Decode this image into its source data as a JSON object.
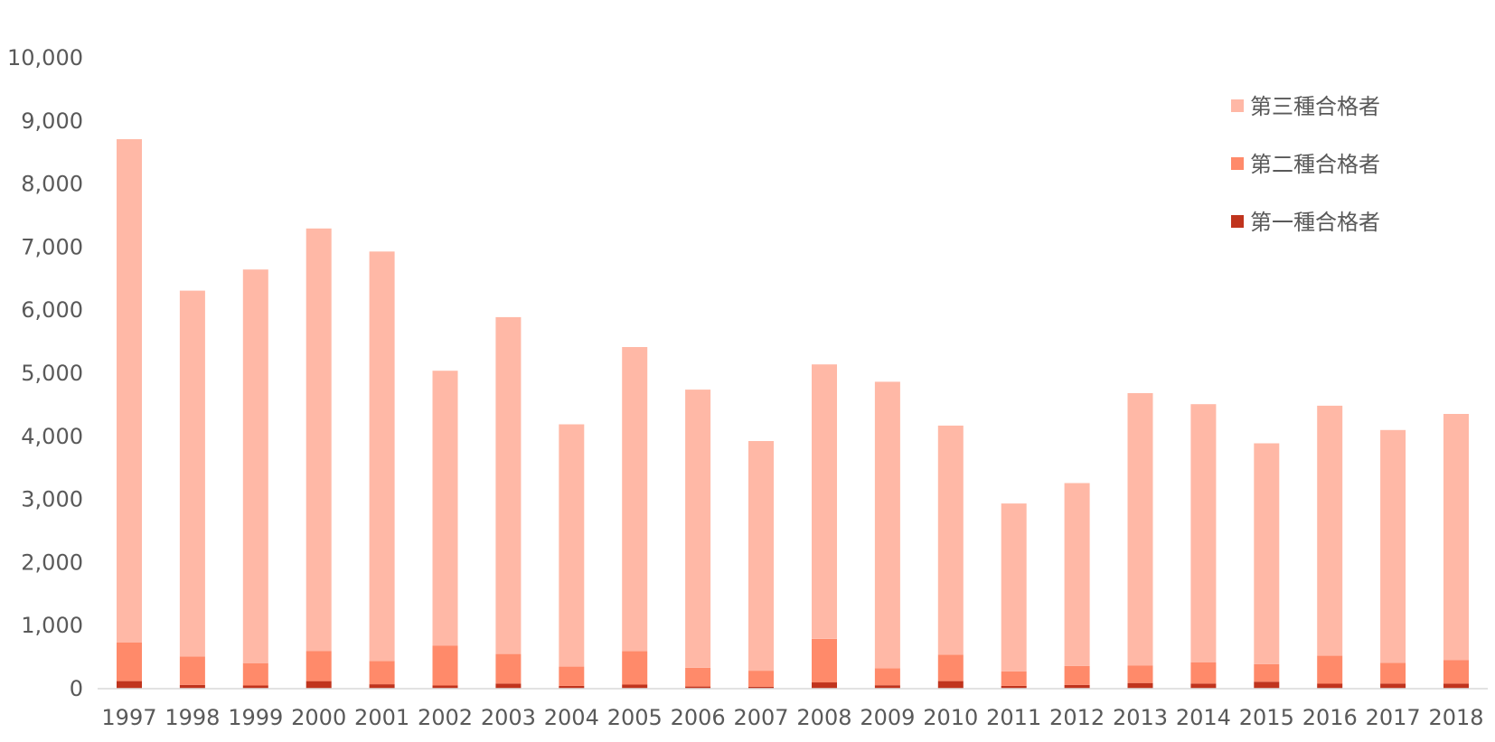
{
  "chart_data": {
    "type": "bar",
    "stacked": true,
    "title": "",
    "xlabel": "",
    "ylabel": "",
    "ylim": [
      0,
      10000
    ],
    "yticks": [
      0,
      1000,
      2000,
      3000,
      4000,
      5000,
      6000,
      7000,
      8000,
      9000,
      10000
    ],
    "ytick_labels": [
      "0",
      "1,000",
      "2,000",
      "3,000",
      "4,000",
      "5,000",
      "6,000",
      "7,000",
      "8,000",
      "9,000",
      "10,000"
    ],
    "grid": false,
    "legend_position": "top-right",
    "categories": [
      "1997",
      "1998",
      "1999",
      "2000",
      "2001",
      "2002",
      "2003",
      "2004",
      "2005",
      "2006",
      "2007",
      "2008",
      "2009",
      "2010",
      "2011",
      "2012",
      "2013",
      "2014",
      "2015",
      "2016",
      "2017",
      "2018"
    ],
    "series": [
      {
        "name": "第一種合格者",
        "color": "#C0341D",
        "values": [
          120,
          60,
          50,
          120,
          70,
          50,
          80,
          45,
          65,
          35,
          30,
          100,
          55,
          120,
          45,
          60,
          90,
          80,
          110,
          80,
          80,
          80
        ]
      },
      {
        "name": "第二種合格者",
        "color": "#FF8A6A",
        "values": [
          610,
          450,
          355,
          475,
          370,
          630,
          470,
          305,
          530,
          295,
          255,
          690,
          270,
          420,
          230,
          300,
          275,
          340,
          280,
          445,
          330,
          375
        ]
      },
      {
        "name": "第三種合格者",
        "color": "#FFB8A6",
        "values": [
          7980,
          5800,
          6240,
          6700,
          6490,
          4360,
          5340,
          3840,
          4820,
          4410,
          3640,
          4350,
          4540,
          3630,
          2660,
          2900,
          4320,
          4090,
          3500,
          3960,
          3690,
          3900
        ]
      }
    ]
  }
}
